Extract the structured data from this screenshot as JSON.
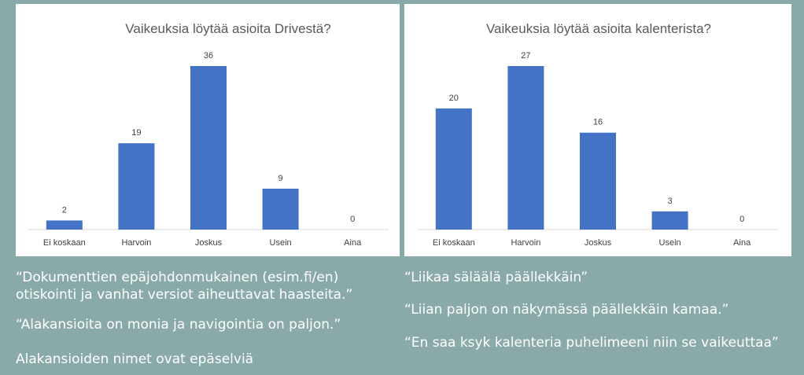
{
  "chart_data": [
    {
      "type": "bar",
      "title": "Vaikeuksia löytää asioita Drivestä?",
      "categories": [
        "Ei koskaan",
        "Harvoin",
        "Joskus",
        "Usein",
        "Aina"
      ],
      "values": [
        2,
        19,
        36,
        9,
        0
      ],
      "ylim": [
        0,
        36
      ],
      "grid": false,
      "bar_color": "#4472c4"
    },
    {
      "type": "bar",
      "title": "Vaikeuksia löytää asioita kalenterista?",
      "categories": [
        "Ei koskaan",
        "Harvoin",
        "Joskus",
        "Usein",
        "Aina"
      ],
      "values": [
        20,
        27,
        16,
        3,
        0
      ],
      "ylim": [
        0,
        27
      ],
      "grid": false,
      "bar_color": "#4472c4"
    }
  ],
  "quotes": {
    "left": [
      "“Dokumenttien epäjohdonmukainen (esim.fi/en)",
      "otiskointi ja vanhat versiot aiheuttavat haasteita.”",
      "“Alakansioita on monia ja navigointia on paljon.”",
      "Alakansioiden nimet ovat epäselviä"
    ],
    "right": [
      "“Liikaa säläälä päällekkäin”",
      "“Liian paljon on näkymässä päällekkäin kamaa.”",
      "“En saa ksyk kalenteria puhelimeeni niin se vaikeuttaa”"
    ]
  }
}
